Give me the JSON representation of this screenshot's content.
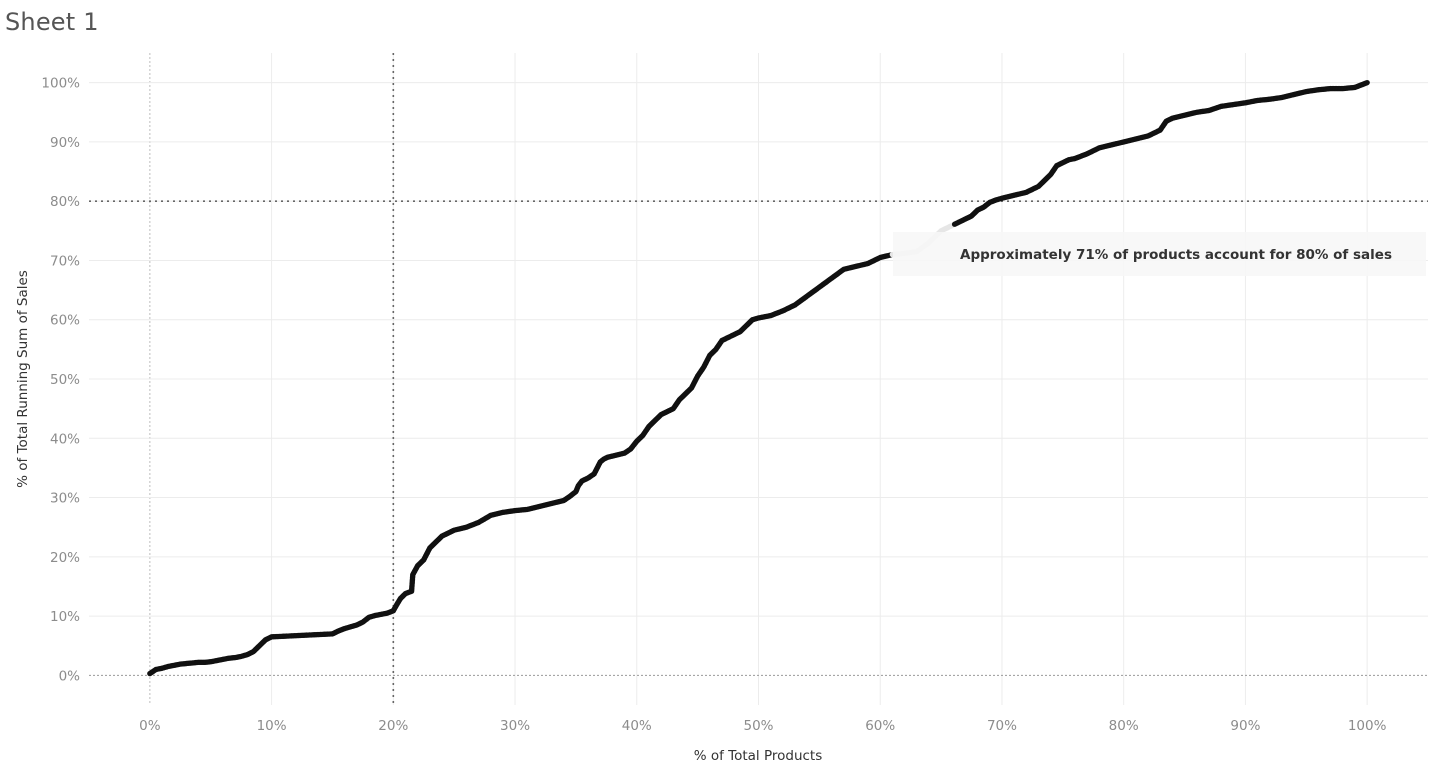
{
  "sheet": {
    "title": "Sheet 1"
  },
  "chart_data": {
    "type": "scatter",
    "xlabel": "% of Total Products",
    "ylabel": "% of Total Running Sum of Sales",
    "xlim": [
      -5,
      105
    ],
    "ylim": [
      -5,
      105
    ],
    "x_ticks": [
      0,
      10,
      20,
      30,
      40,
      50,
      60,
      70,
      80,
      90,
      100
    ],
    "x_tick_labels": [
      "0%",
      "10%",
      "20%",
      "30%",
      "40%",
      "50%",
      "60%",
      "70%",
      "80%",
      "90%",
      "100%"
    ],
    "y_ticks": [
      0,
      10,
      20,
      30,
      40,
      50,
      60,
      70,
      80,
      90,
      100
    ],
    "y_tick_labels": [
      "0%",
      "10%",
      "20%",
      "30%",
      "40%",
      "50%",
      "60%",
      "70%",
      "80%",
      "90%",
      "100%"
    ],
    "grid": true,
    "reference_lines": [
      {
        "axis": "x",
        "value": 20,
        "style": "dotted"
      },
      {
        "axis": "y",
        "value": 80,
        "style": "dotted"
      }
    ],
    "series": [
      {
        "color": "#111111",
        "x": [
          0,
          0.5,
          1.0,
          1.5,
          2.0,
          2.5,
          3.0,
          3.5,
          4.0,
          4.5,
          5.0,
          5.5,
          6.0,
          6.5,
          7.0,
          7.5,
          8.0,
          8.5,
          9.0,
          9.5,
          10.0,
          11.0,
          12.0,
          13.0,
          14.0,
          15.0,
          15.5,
          16.0,
          16.5,
          17.0,
          17.5,
          18.0,
          18.5,
          19.0,
          19.5,
          20.0,
          20.3,
          20.6,
          21.0,
          21.5,
          21.6,
          22.0,
          22.5,
          23.0,
          23.5,
          24.0,
          24.5,
          25.0,
          26.0,
          27.0,
          28.0,
          29.0,
          30.0,
          31.0,
          32.0,
          33.0,
          34.0,
          34.5,
          35.0,
          35.2,
          35.5,
          36.0,
          36.5,
          37.0,
          37.3,
          37.6,
          38.0,
          39.0,
          39.5,
          40.0,
          40.5,
          41.0,
          41.5,
          42.0,
          42.5,
          43.0,
          43.5,
          44.0,
          44.5,
          45.0,
          45.5,
          46.0,
          46.5,
          47.0,
          48.0,
          48.5,
          49.0,
          49.5,
          50.0,
          51.0,
          52.0,
          53.0,
          54.0,
          55.0,
          56.0,
          57.0,
          58.0,
          59.0,
          60.0,
          61.0,
          62.0,
          63.0,
          64.0,
          65.0,
          66.0,
          67.0,
          67.5,
          68.0,
          68.5,
          69.0,
          69.5,
          70.0,
          71.0,
          72.0,
          73.0,
          73.5,
          74.0,
          74.5,
          75.0,
          75.5,
          76.0,
          77.0,
          78.0,
          79.0,
          80.0,
          81.0,
          82.0,
          83.0,
          83.5,
          84.0,
          85.0,
          86.0,
          87.0,
          88.0,
          89.0,
          90.0,
          91.0,
          92.0,
          93.0,
          94.0,
          95.0,
          96.0,
          97.0,
          98.0,
          99.0,
          99.5,
          100.0
        ],
        "y": [
          0.3,
          1.0,
          1.2,
          1.5,
          1.7,
          1.9,
          2.0,
          2.1,
          2.2,
          2.2,
          2.3,
          2.5,
          2.7,
          2.9,
          3.0,
          3.2,
          3.5,
          4.0,
          5.0,
          6.0,
          6.5,
          6.6,
          6.7,
          6.8,
          6.9,
          7.0,
          7.5,
          7.9,
          8.2,
          8.5,
          9.0,
          9.8,
          10.1,
          10.3,
          10.5,
          10.9,
          12.0,
          13.0,
          13.8,
          14.2,
          17.0,
          18.5,
          19.5,
          21.5,
          22.5,
          23.5,
          24.0,
          24.5,
          25.0,
          25.8,
          27.0,
          27.5,
          27.8,
          28.0,
          28.5,
          29.0,
          29.5,
          30.2,
          31.0,
          32.0,
          32.8,
          33.3,
          34.0,
          36.0,
          36.5,
          36.8,
          37.0,
          37.5,
          38.2,
          39.5,
          40.5,
          42.0,
          43.0,
          44.0,
          44.5,
          45.0,
          46.5,
          47.5,
          48.5,
          50.5,
          52.0,
          54.0,
          55.0,
          56.5,
          57.5,
          58.0,
          59.0,
          60.0,
          60.3,
          60.7,
          61.5,
          62.5,
          64.0,
          65.5,
          67.0,
          68.5,
          69.0,
          69.5,
          70.5,
          71.0,
          71.2,
          71.5,
          73.0,
          75.0,
          76.0,
          77.0,
          77.5,
          78.5,
          79.0,
          79.8,
          80.2,
          80.5,
          81.0,
          81.5,
          82.5,
          83.5,
          84.5,
          86.0,
          86.5,
          87.0,
          87.2,
          88.0,
          89.0,
          89.5,
          90.0,
          90.5,
          91.0,
          92.0,
          93.5,
          94.0,
          94.5,
          95.0,
          95.3,
          96.0,
          96.3,
          96.6,
          97.0,
          97.2,
          97.5,
          98.0,
          98.5,
          98.8,
          99.0,
          99.0,
          99.2,
          99.6,
          100.0
        ]
      }
    ],
    "highlight_x_range": [
      61,
      66
    ],
    "annotation": {
      "text": "Approximately 71% of products account for 80% of sales"
    }
  }
}
